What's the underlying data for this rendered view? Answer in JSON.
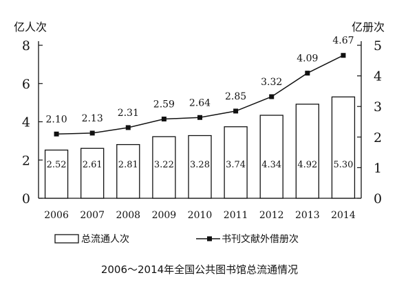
{
  "chart_data": {
    "type": "bar+line",
    "title": "2006～2014年全国公共图书馆总流通情况",
    "categories": [
      "2006",
      "2007",
      "2008",
      "2009",
      "2010",
      "2011",
      "2012",
      "2013",
      "2014"
    ],
    "series": [
      {
        "name": "总流通人次",
        "type": "bar",
        "axis": "left",
        "values": [
          2.52,
          2.61,
          2.81,
          3.22,
          3.28,
          3.74,
          4.34,
          4.92,
          5.3
        ]
      },
      {
        "name": "书刊文献外借册次",
        "type": "line",
        "axis": "right",
        "marker": "square",
        "values": [
          2.1,
          2.13,
          2.31,
          2.59,
          2.64,
          2.85,
          3.32,
          4.09,
          4.67
        ]
      }
    ],
    "ylabel_left": "亿人次",
    "ylabel_right": "亿册次",
    "ylim_left": [
      0,
      8
    ],
    "ylim_right": [
      0,
      5
    ],
    "yticks_left": [
      0,
      2,
      4,
      6,
      8
    ],
    "yticks_right": [
      0,
      1,
      2,
      3,
      4,
      5
    ],
    "grid": false,
    "legend_position": "bottom"
  }
}
